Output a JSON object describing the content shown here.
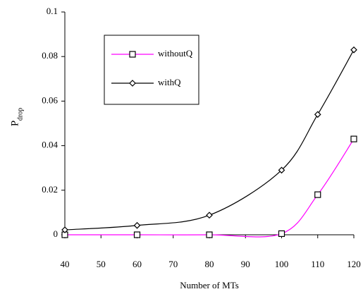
{
  "chart_data": {
    "type": "line",
    "x_label": "Number of MTs",
    "y_label": {
      "main": "P",
      "subscript": "drop"
    },
    "x": [
      40,
      60,
      80,
      100,
      110,
      120
    ],
    "series": [
      {
        "name": "withoutQ",
        "color": "#ff00ff",
        "marker": "square",
        "values": [
          0,
          0,
          0,
          0.0005,
          0.018,
          0.043
        ]
      },
      {
        "name": "withQ",
        "color": "#000000",
        "marker": "diamond",
        "values": [
          0.0022,
          0.0042,
          0.0088,
          0.029,
          0.054,
          0.083
        ]
      }
    ],
    "xlim": [
      40,
      120
    ],
    "xticks": [
      40,
      50,
      60,
      70,
      80,
      90,
      100,
      110,
      120
    ],
    "ylim": [
      0,
      0.1
    ],
    "yticks": [
      0,
      0.02,
      0.04,
      0.06,
      0.08,
      0.1
    ],
    "grid": false,
    "legend": "upper left"
  }
}
